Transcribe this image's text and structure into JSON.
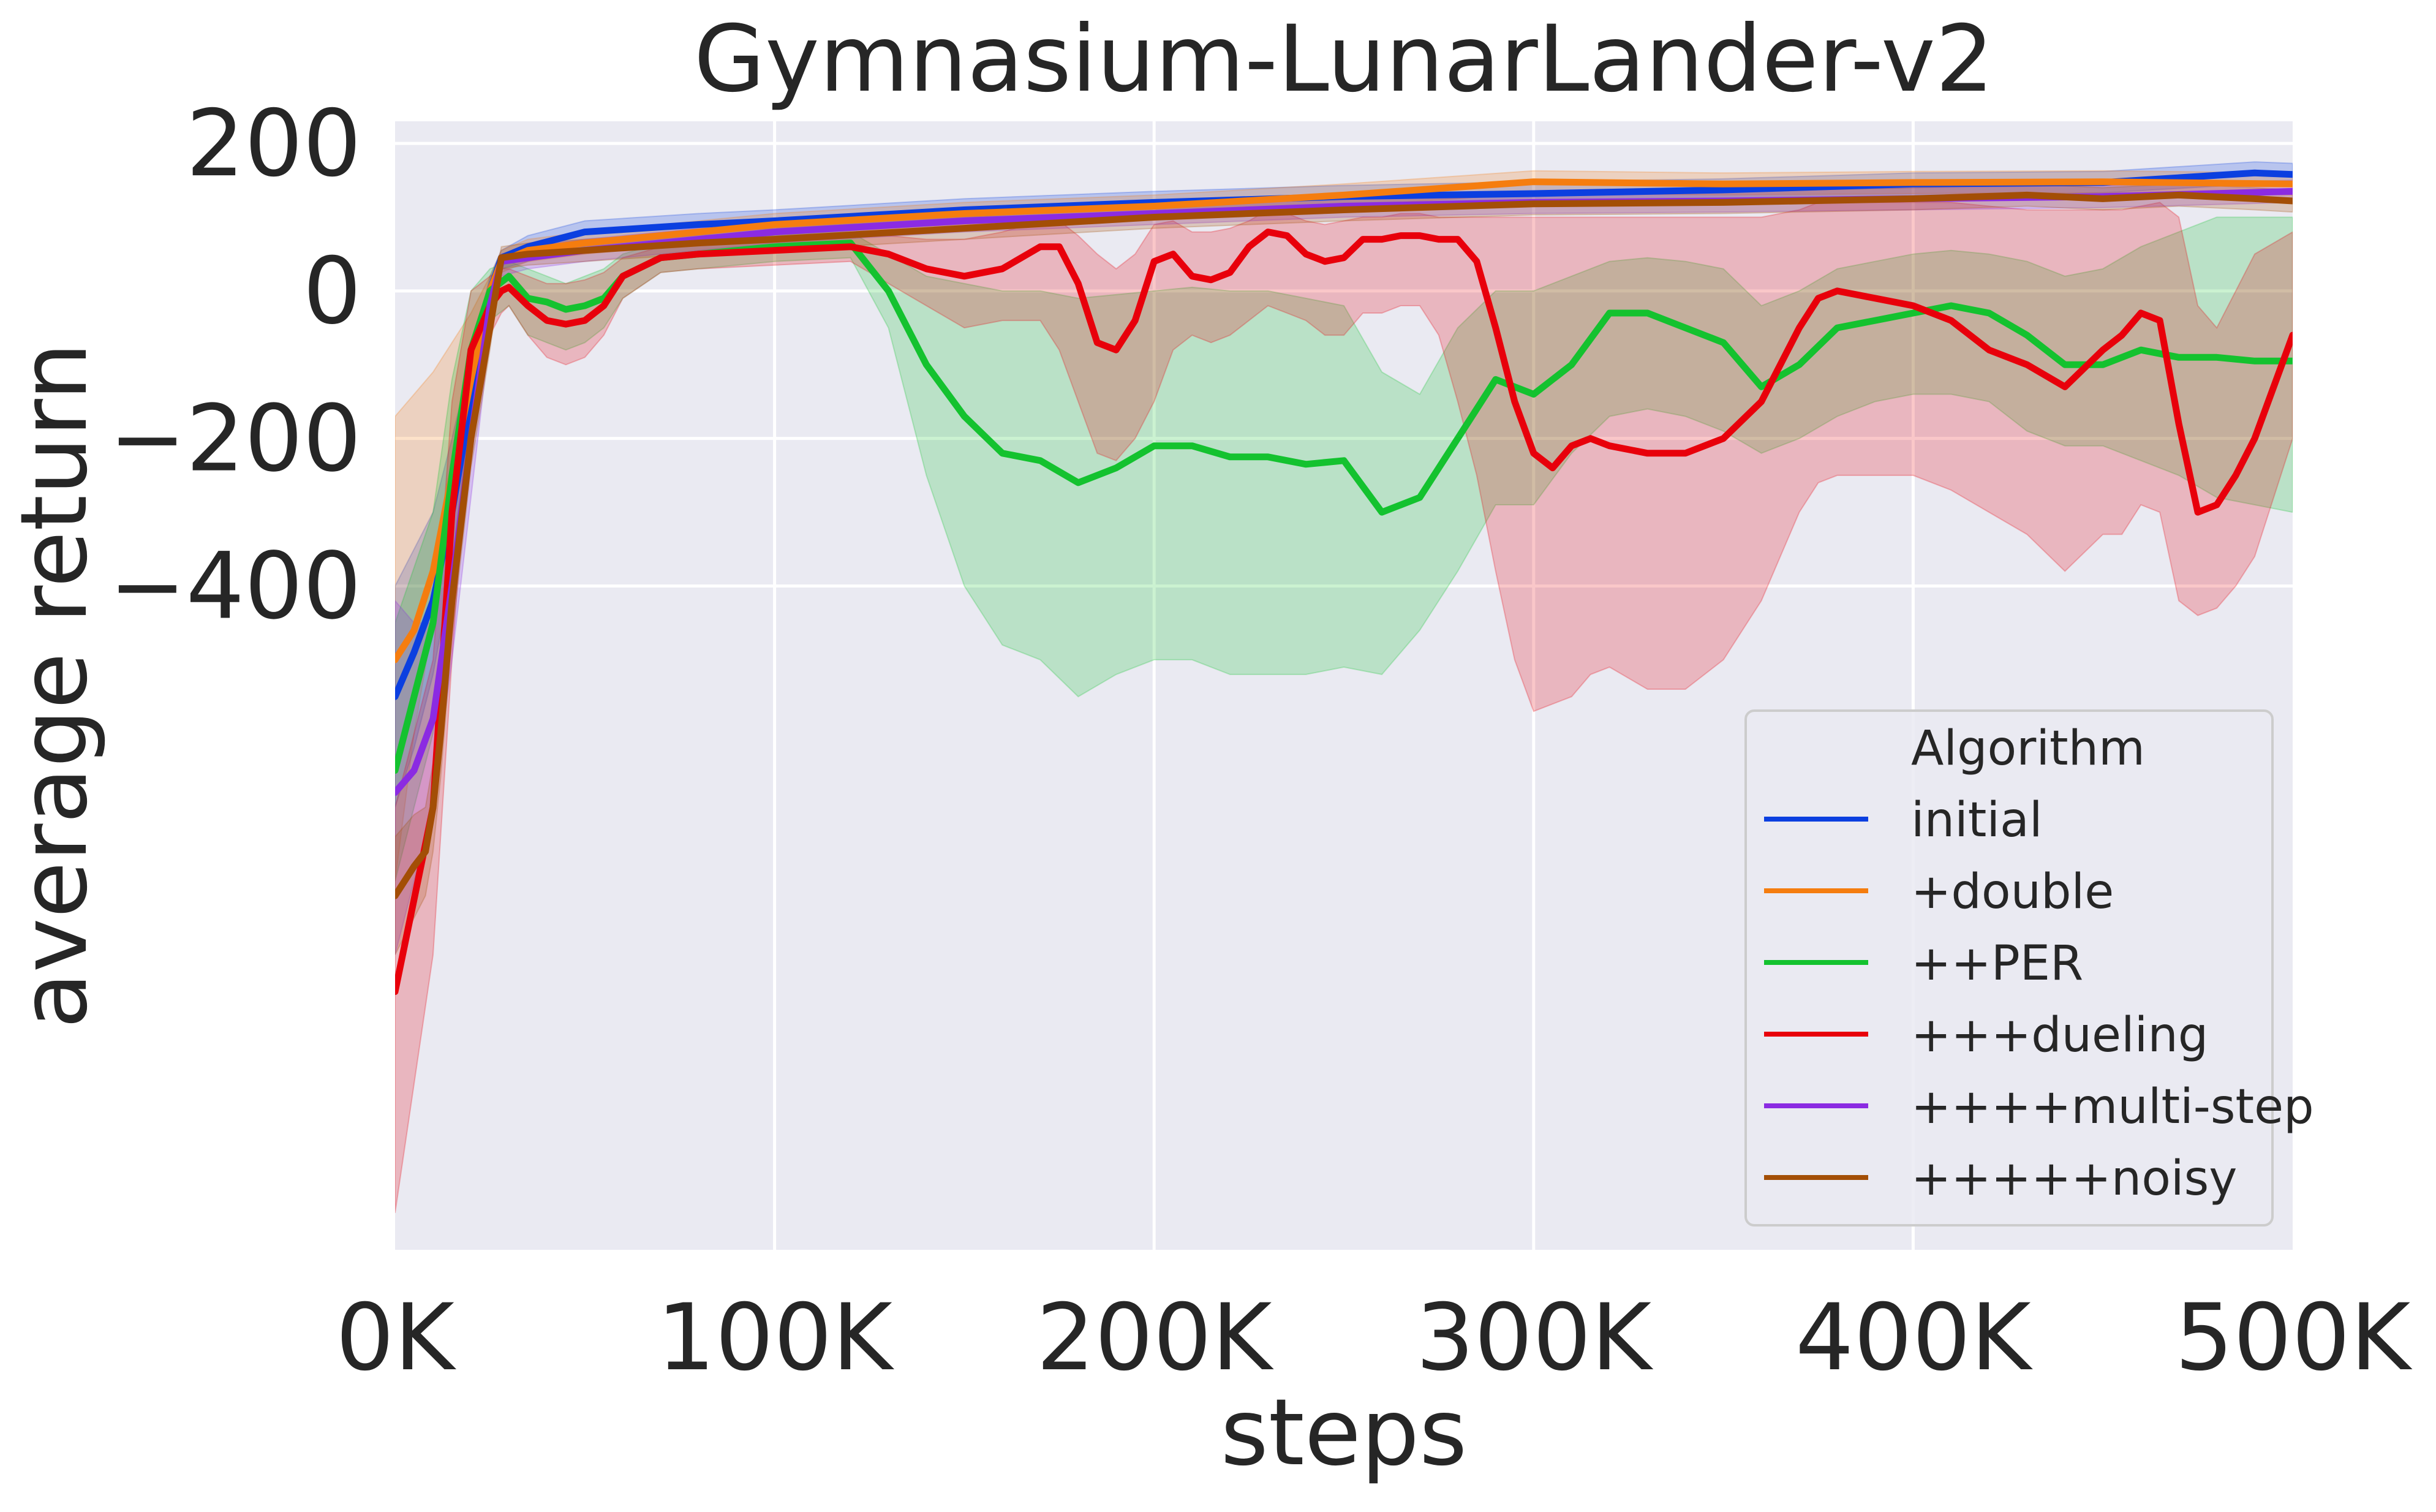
{
  "colors": {
    "plot_background": "#eaeaf2",
    "grid": "#ffffff",
    "text": "#262626"
  },
  "chart_data": {
    "type": "line",
    "title": "Gymnasium-LunarLander-v2",
    "xlabel": "steps",
    "ylabel": "average return",
    "xlim": [
      0,
      500000
    ],
    "ylim": [
      -1300,
      230
    ],
    "x_ticks": [
      0,
      100000,
      200000,
      300000,
      400000,
      500000
    ],
    "x_tick_labels": [
      "0K",
      "100K",
      "200K",
      "300K",
      "400K",
      "500K"
    ],
    "y_ticks": [
      200,
      0,
      -200,
      -400
    ],
    "y_tick_labels": [
      "200",
      "0",
      "−200",
      "−400"
    ],
    "grid": true,
    "legend": {
      "title": "Algorithm",
      "position": "lower-right"
    },
    "series": [
      {
        "name": "initial",
        "color": "#0b3fe0",
        "x": [
          0,
          5000,
          10000,
          15000,
          20000,
          25000,
          28000,
          35000,
          50000,
          80000,
          100000,
          150000,
          200000,
          250000,
          300000,
          350000,
          400000,
          450000,
          490000,
          500000
        ],
        "y": [
          -550,
          -490,
          -420,
          -300,
          -150,
          0,
          45,
          60,
          80,
          90,
          95,
          110,
          120,
          128,
          132,
          137,
          145,
          147,
          160,
          158
        ],
        "band_lower": [
          -700,
          -620,
          -520,
          -380,
          -200,
          -30,
          30,
          40,
          60,
          75,
          80,
          95,
          105,
          112,
          118,
          122,
          128,
          133,
          145,
          143
        ],
        "band_upper": [
          -400,
          -350,
          -300,
          -200,
          -90,
          20,
          55,
          75,
          95,
          105,
          110,
          125,
          135,
          143,
          148,
          152,
          160,
          162,
          175,
          173
        ]
      },
      {
        "name": "+double",
        "color": "#f57d0f",
        "x": [
          0,
          5000,
          10000,
          15000,
          20000,
          25000,
          28000,
          35000,
          50000,
          80000,
          100000,
          150000,
          200000,
          250000,
          300000,
          350000,
          400000,
          450000,
          500000
        ],
        "y": [
          -500,
          -460,
          -380,
          -250,
          -120,
          0,
          40,
          55,
          65,
          80,
          90,
          105,
          115,
          130,
          148,
          145,
          147,
          148,
          145
        ],
        "band_lower": [
          -800,
          -600,
          -450,
          -300,
          -160,
          -20,
          25,
          40,
          50,
          65,
          75,
          90,
          100,
          115,
          132,
          130,
          132,
          133,
          130
        ],
        "band_upper": [
          -170,
          -140,
          -110,
          -70,
          -30,
          20,
          55,
          70,
          80,
          95,
          105,
          120,
          130,
          145,
          163,
          160,
          162,
          163,
          160
        ]
      },
      {
        "name": "++PER",
        "color": "#14c22f",
        "x": [
          0,
          10000,
          15000,
          20000,
          25000,
          30000,
          35000,
          40000,
          45000,
          50000,
          55000,
          60000,
          70000,
          80000,
          100000,
          120000,
          130000,
          140000,
          150000,
          160000,
          170000,
          180000,
          190000,
          200000,
          210000,
          220000,
          230000,
          240000,
          250000,
          260000,
          270000,
          280000,
          290000,
          300000,
          310000,
          320000,
          330000,
          340000,
          350000,
          360000,
          370000,
          380000,
          390000,
          400000,
          410000,
          420000,
          430000,
          440000,
          450000,
          460000,
          470000,
          480000,
          490000,
          500000
        ],
        "y": [
          -650,
          -450,
          -250,
          -80,
          0,
          20,
          -10,
          -15,
          -25,
          -20,
          -10,
          20,
          45,
          50,
          60,
          65,
          0,
          -100,
          -170,
          -220,
          -230,
          -260,
          -240,
          -210,
          -210,
          -225,
          -225,
          -235,
          -230,
          -300,
          -280,
          -200,
          -120,
          -140,
          -100,
          -30,
          -30,
          -50,
          -70,
          -130,
          -100,
          -50,
          -40,
          -30,
          -20,
          -30,
          -60,
          -100,
          -100,
          -80,
          -90,
          -90,
          -95,
          -95
        ],
        "band_lower": [
          -800,
          -600,
          -400,
          -200,
          -40,
          -20,
          -60,
          -70,
          -80,
          -70,
          -50,
          -10,
          25,
          30,
          40,
          45,
          -50,
          -250,
          -400,
          -480,
          -500,
          -550,
          -520,
          -500,
          -500,
          -520,
          -520,
          -520,
          -510,
          -520,
          -460,
          -380,
          -290,
          -290,
          -220,
          -170,
          -160,
          -170,
          -190,
          -220,
          -200,
          -170,
          -150,
          -140,
          -140,
          -150,
          -190,
          -210,
          -210,
          -230,
          -250,
          -280,
          -290,
          -300
        ],
        "band_upper": [
          -450,
          -300,
          -120,
          0,
          30,
          40,
          30,
          20,
          10,
          20,
          30,
          50,
          65,
          70,
          75,
          80,
          50,
          20,
          10,
          0,
          0,
          -10,
          -5,
          0,
          5,
          0,
          0,
          -10,
          -20,
          -110,
          -140,
          -50,
          0,
          0,
          20,
          40,
          45,
          40,
          30,
          -20,
          0,
          30,
          40,
          50,
          55,
          50,
          40,
          20,
          30,
          60,
          80,
          100,
          100,
          100
        ]
      },
      {
        "name": "+++dueling",
        "color": "#e8000b",
        "x": [
          0,
          10000,
          15000,
          20000,
          25000,
          28000,
          30000,
          35000,
          40000,
          45000,
          50000,
          55000,
          60000,
          70000,
          80000,
          100000,
          120000,
          130000,
          140000,
          150000,
          160000,
          170000,
          175000,
          180000,
          185000,
          190000,
          195000,
          200000,
          205000,
          210000,
          215000,
          220000,
          225000,
          230000,
          235000,
          240000,
          245000,
          250000,
          255000,
          260000,
          265000,
          270000,
          275000,
          280000,
          285000,
          290000,
          295000,
          300000,
          305000,
          310000,
          315000,
          320000,
          330000,
          340000,
          350000,
          360000,
          370000,
          375000,
          380000,
          385000,
          390000,
          400000,
          410000,
          420000,
          430000,
          440000,
          450000,
          455000,
          460000,
          465000,
          470000,
          475000,
          480000,
          485000,
          490000,
          500000
        ],
        "y": [
          -950,
          -700,
          -300,
          -80,
          -20,
          0,
          5,
          -20,
          -40,
          -45,
          -40,
          -20,
          20,
          45,
          50,
          55,
          60,
          50,
          30,
          20,
          30,
          60,
          60,
          10,
          -70,
          -80,
          -40,
          40,
          50,
          20,
          15,
          25,
          60,
          80,
          75,
          50,
          40,
          45,
          70,
          70,
          75,
          75,
          70,
          70,
          40,
          -50,
          -150,
          -220,
          -240,
          -210,
          -200,
          -210,
          -220,
          -220,
          -200,
          -150,
          -50,
          -10,
          0,
          -5,
          -10,
          -20,
          -40,
          -80,
          -100,
          -130,
          -80,
          -60,
          -30,
          -40,
          -180,
          -300,
          -290,
          -250,
          -200,
          -60
        ],
        "band_lower": [
          -1250,
          -900,
          -500,
          -150,
          -60,
          -30,
          -20,
          -60,
          -90,
          -100,
          -90,
          -60,
          -10,
          25,
          30,
          35,
          40,
          10,
          -20,
          -50,
          -40,
          -40,
          -80,
          -150,
          -220,
          -230,
          -200,
          -150,
          -80,
          -60,
          -70,
          -60,
          -40,
          -20,
          -30,
          -40,
          -60,
          -60,
          -30,
          -30,
          -20,
          -20,
          -60,
          -150,
          -250,
          -380,
          -500,
          -570,
          -560,
          -550,
          -520,
          -510,
          -540,
          -540,
          -500,
          -420,
          -300,
          -260,
          -250,
          -250,
          -250,
          -250,
          -270,
          -300,
          -330,
          -380,
          -330,
          -330,
          -290,
          -300,
          -420,
          -440,
          -430,
          -400,
          -360,
          -200
        ],
        "band_upper": [
          -700,
          -500,
          -150,
          0,
          20,
          30,
          30,
          20,
          10,
          10,
          15,
          25,
          45,
          60,
          65,
          70,
          75,
          75,
          70,
          70,
          80,
          95,
          95,
          75,
          50,
          30,
          50,
          90,
          95,
          80,
          80,
          85,
          95,
          110,
          105,
          95,
          90,
          95,
          100,
          100,
          105,
          105,
          100,
          100,
          100,
          100,
          100,
          100,
          100,
          100,
          100,
          100,
          100,
          100,
          100,
          100,
          110,
          120,
          120,
          120,
          120,
          120,
          120,
          115,
          110,
          110,
          110,
          110,
          115,
          120,
          100,
          -20,
          -50,
          0,
          50,
          80
        ]
      },
      {
        "name": "++++multi-step",
        "color": "#8b2be2",
        "x": [
          0,
          5000,
          10000,
          15000,
          20000,
          25000,
          28000,
          35000,
          50000,
          80000,
          100000,
          150000,
          200000,
          250000,
          300000,
          350000,
          400000,
          450000,
          500000
        ],
        "y": [
          -680,
          -650,
          -580,
          -400,
          -200,
          -20,
          40,
          45,
          55,
          70,
          80,
          95,
          105,
          115,
          120,
          122,
          125,
          128,
          135
        ],
        "band_lower": [
          -900,
          -800,
          -700,
          -500,
          -280,
          -60,
          20,
          30,
          40,
          55,
          65,
          80,
          90,
          100,
          105,
          107,
          110,
          113,
          120
        ],
        "band_upper": [
          -420,
          -450,
          -450,
          -300,
          -120,
          10,
          50,
          60,
          70,
          85,
          95,
          110,
          120,
          130,
          135,
          137,
          140,
          143,
          150
        ]
      },
      {
        "name": "+++++noisy",
        "color": "#a34e06",
        "x": [
          0,
          5000,
          8000,
          10000,
          12000,
          15000,
          20000,
          25000,
          28000,
          35000,
          50000,
          80000,
          100000,
          150000,
          200000,
          250000,
          300000,
          350000,
          400000,
          430000,
          450000,
          470000,
          490000,
          500000
        ],
        "y": [
          -820,
          -780,
          -760,
          -700,
          -600,
          -420,
          -200,
          -50,
          45,
          50,
          55,
          65,
          70,
          85,
          100,
          110,
          118,
          120,
          125,
          130,
          125,
          130,
          125,
          122
        ],
        "band_lower": [
          -900,
          -850,
          -820,
          -760,
          -660,
          -470,
          -240,
          -80,
          30,
          35,
          40,
          50,
          55,
          70,
          85,
          95,
          103,
          105,
          110,
          115,
          110,
          115,
          110,
          107
        ],
        "band_upper": [
          -740,
          -710,
          -700,
          -640,
          -540,
          -370,
          -160,
          -20,
          60,
          65,
          70,
          80,
          85,
          100,
          115,
          125,
          133,
          135,
          140,
          145,
          140,
          145,
          140,
          137
        ]
      }
    ]
  }
}
